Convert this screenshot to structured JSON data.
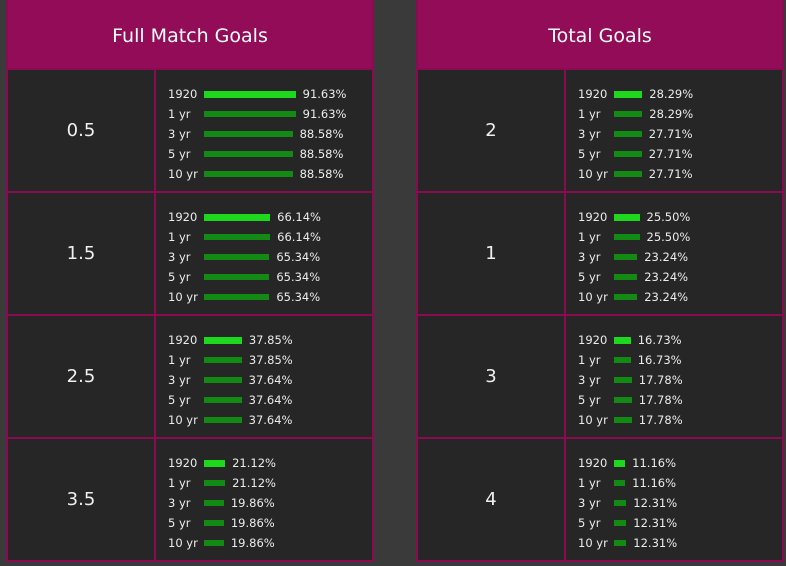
{
  "colors": {
    "header_bg": "#930c57",
    "border": "#8a0b52",
    "panel_bg": "#262626",
    "bar_primary": "#1ed81e",
    "bar_secondary": "#138a13"
  },
  "panels": [
    {
      "title": "Full Match Goals",
      "rows": [
        {
          "label": "0.5",
          "stats": [
            {
              "period": "1920",
              "pct": "91.63%",
              "value": 91.63
            },
            {
              "period": "1 yr",
              "pct": "91.63%",
              "value": 91.63
            },
            {
              "period": "3 yr",
              "pct": "88.58%",
              "value": 88.58
            },
            {
              "period": "5 yr",
              "pct": "88.58%",
              "value": 88.58
            },
            {
              "period": "10 yr",
              "pct": "88.58%",
              "value": 88.58
            }
          ]
        },
        {
          "label": "1.5",
          "stats": [
            {
              "period": "1920",
              "pct": "66.14%",
              "value": 66.14
            },
            {
              "period": "1 yr",
              "pct": "66.14%",
              "value": 66.14
            },
            {
              "period": "3 yr",
              "pct": "65.34%",
              "value": 65.34
            },
            {
              "period": "5 yr",
              "pct": "65.34%",
              "value": 65.34
            },
            {
              "period": "10 yr",
              "pct": "65.34%",
              "value": 65.34
            }
          ]
        },
        {
          "label": "2.5",
          "stats": [
            {
              "period": "1920",
              "pct": "37.85%",
              "value": 37.85
            },
            {
              "period": "1 yr",
              "pct": "37.85%",
              "value": 37.85
            },
            {
              "period": "3 yr",
              "pct": "37.64%",
              "value": 37.64
            },
            {
              "period": "5 yr",
              "pct": "37.64%",
              "value": 37.64
            },
            {
              "period": "10 yr",
              "pct": "37.64%",
              "value": 37.64
            }
          ]
        },
        {
          "label": "3.5",
          "stats": [
            {
              "period": "1920",
              "pct": "21.12%",
              "value": 21.12
            },
            {
              "period": "1 yr",
              "pct": "21.12%",
              "value": 21.12
            },
            {
              "period": "3 yr",
              "pct": "19.86%",
              "value": 19.86
            },
            {
              "period": "5 yr",
              "pct": "19.86%",
              "value": 19.86
            },
            {
              "period": "10 yr",
              "pct": "19.86%",
              "value": 19.86
            }
          ]
        }
      ]
    },
    {
      "title": "Total Goals",
      "rows": [
        {
          "label": "2",
          "stats": [
            {
              "period": "1920",
              "pct": "28.29%",
              "value": 28.29
            },
            {
              "period": "1 yr",
              "pct": "28.29%",
              "value": 28.29
            },
            {
              "period": "3 yr",
              "pct": "27.71%",
              "value": 27.71
            },
            {
              "period": "5 yr",
              "pct": "27.71%",
              "value": 27.71
            },
            {
              "period": "10 yr",
              "pct": "27.71%",
              "value": 27.71
            }
          ]
        },
        {
          "label": "1",
          "stats": [
            {
              "period": "1920",
              "pct": "25.50%",
              "value": 25.5
            },
            {
              "period": "1 yr",
              "pct": "25.50%",
              "value": 25.5
            },
            {
              "period": "3 yr",
              "pct": "23.24%",
              "value": 23.24
            },
            {
              "period": "5 yr",
              "pct": "23.24%",
              "value": 23.24
            },
            {
              "period": "10 yr",
              "pct": "23.24%",
              "value": 23.24
            }
          ]
        },
        {
          "label": "3",
          "stats": [
            {
              "period": "1920",
              "pct": "16.73%",
              "value": 16.73
            },
            {
              "period": "1 yr",
              "pct": "16.73%",
              "value": 16.73
            },
            {
              "period": "3 yr",
              "pct": "17.78%",
              "value": 17.78
            },
            {
              "period": "5 yr",
              "pct": "17.78%",
              "value": 17.78
            },
            {
              "period": "10 yr",
              "pct": "17.78%",
              "value": 17.78
            }
          ]
        },
        {
          "label": "4",
          "stats": [
            {
              "period": "1920",
              "pct": "11.16%",
              "value": 11.16
            },
            {
              "period": "1 yr",
              "pct": "11.16%",
              "value": 11.16
            },
            {
              "period": "3 yr",
              "pct": "12.31%",
              "value": 12.31
            },
            {
              "period": "5 yr",
              "pct": "12.31%",
              "value": 12.31
            },
            {
              "period": "10 yr",
              "pct": "12.31%",
              "value": 12.31
            }
          ]
        }
      ]
    }
  ]
}
